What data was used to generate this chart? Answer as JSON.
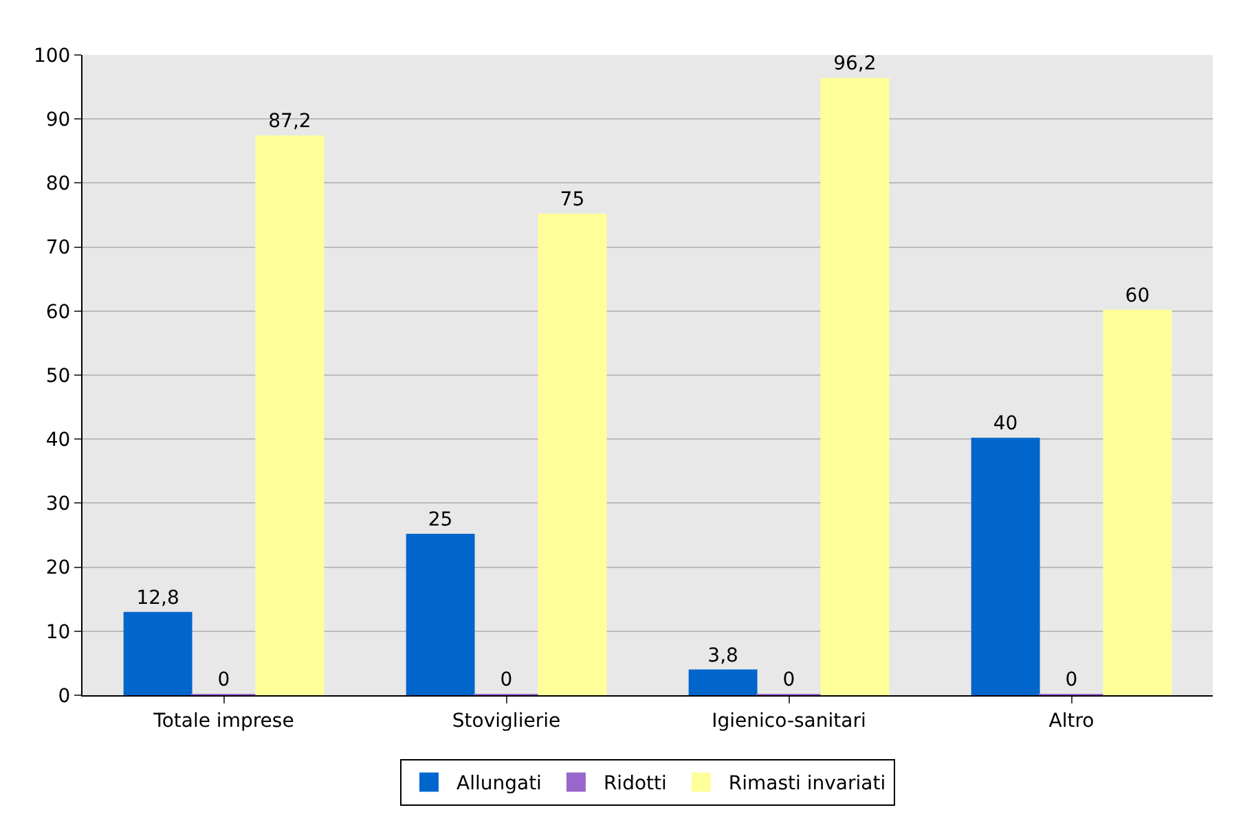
{
  "chart_data": {
    "type": "bar",
    "categories": [
      "Totale imprese",
      "Stoviglierie",
      "Igienico-sanitari",
      "Altro"
    ],
    "series": [
      {
        "name": "Allungati",
        "color": "#0066cc",
        "values": [
          12.8,
          25,
          3.8,
          40
        ]
      },
      {
        "name": "Ridotti",
        "color": "#9966cc",
        "values": [
          0,
          0,
          0,
          0
        ]
      },
      {
        "name": "Rimasti invariati",
        "color": "#ffff99",
        "values": [
          87.2,
          75,
          96.2,
          60
        ]
      }
    ],
    "value_labels": [
      [
        "12,8",
        "25",
        "3,8",
        "40"
      ],
      [
        "0",
        "0",
        "0",
        "0"
      ],
      [
        "87,2",
        "75",
        "96,2",
        "60"
      ]
    ],
    "ylim": [
      0,
      100
    ],
    "yticks": [
      0,
      10,
      20,
      30,
      40,
      50,
      60,
      70,
      80,
      90,
      100
    ],
    "grid": "y",
    "legend": "bottom"
  }
}
